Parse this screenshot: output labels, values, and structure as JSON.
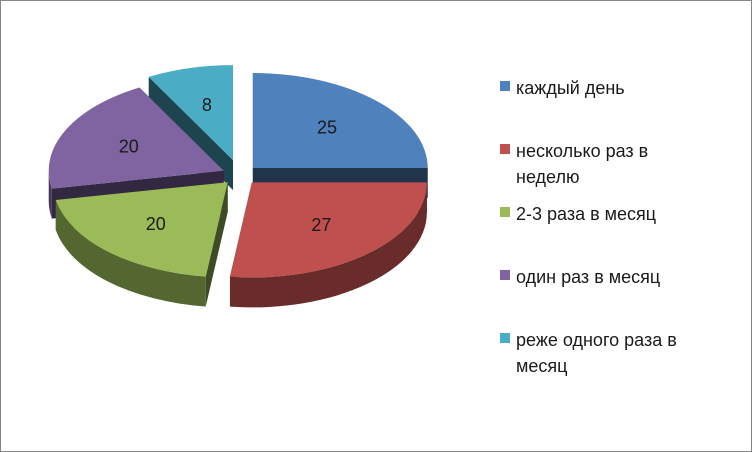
{
  "chart_data": {
    "type": "pie",
    "style": "3d-exploded",
    "categories": [
      "каждый день",
      "несколько раз в неделю",
      "2-3 раза в месяц",
      "один раз в месяц",
      "реже одного раза в месяц"
    ],
    "values": [
      25,
      27,
      20,
      20,
      8
    ],
    "colors": [
      "#4f81bd",
      "#c0504d",
      "#9bbb59",
      "#8064a2",
      "#4bacc6"
    ],
    "legend_position": "right"
  }
}
